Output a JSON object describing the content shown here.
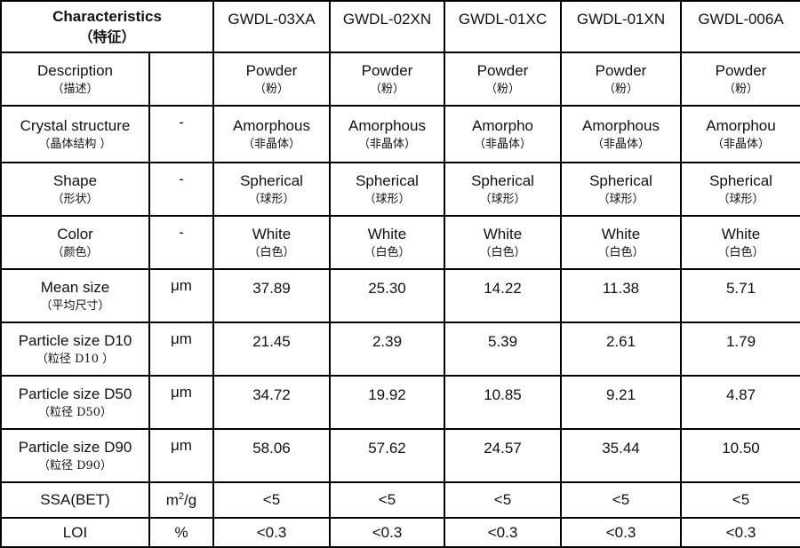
{
  "colors": {
    "header_bg": "#9DC3E6",
    "border": "#000000",
    "cell_bg": "#FFFFFF"
  },
  "table": {
    "header": {
      "label": "Characteristics",
      "label_cn": "（特征）",
      "products": [
        "GWDL-03XA",
        "GWDL-02XN",
        "GWDL-01XC",
        "GWDL-01XN",
        "GWDL-006A"
      ]
    },
    "rows": [
      {
        "key": "description",
        "label": "Description",
        "label_cn": "（描述）",
        "unit": "",
        "values": [
          {
            "en": "Powder",
            "cn": "（粉）"
          },
          {
            "en": "Powder",
            "cn": "（粉）"
          },
          {
            "en": "Powder",
            "cn": "（粉）"
          },
          {
            "en": "Powder",
            "cn": "（粉）"
          },
          {
            "en": "Powder",
            "cn": "（粉）"
          }
        ]
      },
      {
        "key": "crystal-structure",
        "label": "Crystal structure",
        "label_cn": "（晶体结构 ）",
        "unit": "-",
        "values": [
          {
            "en": "Amorphous",
            "cn": "（非晶体）"
          },
          {
            "en": "Amorphous",
            "cn": "（非晶体）"
          },
          {
            "en": "Amorpho",
            "cn": "（非晶体）"
          },
          {
            "en": "Amorphous",
            "cn": "（非晶体）"
          },
          {
            "en": "Amorphou",
            "cn": "（非晶体）"
          }
        ]
      },
      {
        "key": "shape",
        "label": "Shape",
        "label_cn": "（形状）",
        "unit": "-",
        "values": [
          {
            "en": "Spherical",
            "cn": "（球形）"
          },
          {
            "en": "Spherical",
            "cn": "（球形）"
          },
          {
            "en": "Spherical",
            "cn": "（球形）"
          },
          {
            "en": "Spherical",
            "cn": "（球形）"
          },
          {
            "en": "Spherical",
            "cn": "（球形）"
          }
        ]
      },
      {
        "key": "color",
        "label": "Color",
        "label_cn": "（颜色）",
        "unit": "-",
        "values": [
          {
            "en": "White",
            "cn": "（白色）"
          },
          {
            "en": "White",
            "cn": "（白色）"
          },
          {
            "en": "White",
            "cn": "（白色）"
          },
          {
            "en": "White",
            "cn": "（白色）"
          },
          {
            "en": "White",
            "cn": "（白色）"
          }
        ]
      },
      {
        "key": "mean-size",
        "label": "Mean size",
        "label_cn": "（平均尺寸）",
        "unit": "μm",
        "values": [
          {
            "en": "37.89"
          },
          {
            "en": "25.30"
          },
          {
            "en": "14.22"
          },
          {
            "en": "11.38"
          },
          {
            "en": "5.71"
          }
        ]
      },
      {
        "key": "particle-size-d10",
        "label": "Particle size D10",
        "label_cn": "（粒径  D10  ）",
        "unit": "μm",
        "values": [
          {
            "en": "21.45"
          },
          {
            "en": "2.39"
          },
          {
            "en": "5.39"
          },
          {
            "en": "2.61"
          },
          {
            "en": "1.79"
          }
        ]
      },
      {
        "key": "particle-size-d50",
        "label": "Particle size D50",
        "label_cn": "（粒径  D50）",
        "unit": "μm",
        "values": [
          {
            "en": "34.72"
          },
          {
            "en": "19.92"
          },
          {
            "en": "10.85"
          },
          {
            "en": "9.21"
          },
          {
            "en": "4.87"
          }
        ]
      },
      {
        "key": "particle-size-d90",
        "label": "Particle size D90",
        "label_cn": "（粒径  D90）",
        "unit": "μm",
        "values": [
          {
            "en": "58.06"
          },
          {
            "en": "57.62"
          },
          {
            "en": "24.57"
          },
          {
            "en": "35.44"
          },
          {
            "en": "10.50"
          }
        ]
      },
      {
        "key": "ssa-bet",
        "label": "SSA(BET)",
        "label_cn": "",
        "unit": "m²/g",
        "values": [
          {
            "en": "<5"
          },
          {
            "en": "<5"
          },
          {
            "en": "<5"
          },
          {
            "en": "<5"
          },
          {
            "en": "<5"
          }
        ]
      },
      {
        "key": "loi",
        "label": "LOI",
        "label_cn": "",
        "unit": "%",
        "values": [
          {
            "en": "<0.3"
          },
          {
            "en": "<0.3"
          },
          {
            "en": "<0.3"
          },
          {
            "en": "<0.3"
          },
          {
            "en": "<0.3"
          }
        ]
      }
    ]
  }
}
